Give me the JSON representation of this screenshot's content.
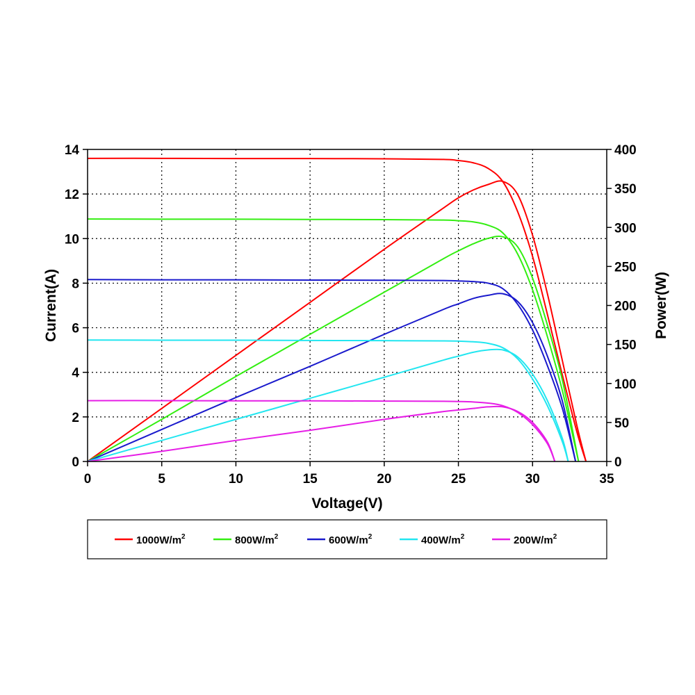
{
  "chart_data": {
    "type": "line",
    "xlabel": "Voltage(V)",
    "ylabel_left": "Current(A)",
    "ylabel_right": "Power(W)",
    "xlim": [
      0,
      35
    ],
    "ylim_left": [
      0,
      14
    ],
    "ylim_right": [
      0,
      400
    ],
    "x_ticks": [
      "0",
      "5",
      "10",
      "15",
      "20",
      "25",
      "30",
      "35"
    ],
    "y_left_ticks": [
      "0",
      "2",
      "4",
      "6",
      "8",
      "10",
      "12",
      "14"
    ],
    "y_right_ticks": [
      "0",
      "50",
      "100",
      "150",
      "200",
      "250",
      "300",
      "350",
      "400"
    ],
    "grid": true,
    "legend_position": "bottom",
    "series": [
      {
        "name": "1000W/m",
        "name_sup": "2",
        "color": "#ff0000",
        "current": {
          "x": [
            0,
            5,
            10,
            15,
            20,
            24,
            25,
            26,
            27,
            28,
            29,
            30,
            31,
            32,
            33,
            33.6
          ],
          "y": [
            13.6,
            13.6,
            13.59,
            13.59,
            13.58,
            13.55,
            13.5,
            13.4,
            13.15,
            12.55,
            11.2,
            9.2,
            6.6,
            3.9,
            1.3,
            0
          ]
        },
        "power": {
          "x": [
            0,
            5,
            10,
            15,
            20,
            24,
            25,
            26,
            27,
            28,
            29,
            30,
            31,
            32,
            33,
            33.6
          ],
          "y": [
            0,
            68,
            136,
            204,
            272,
            325,
            338,
            348,
            355,
            359,
            342,
            290,
            215,
            130,
            45,
            0
          ]
        }
      },
      {
        "name": "800W/m",
        "name_sup": "2",
        "color": "#33ee11",
        "current": {
          "x": [
            0,
            5,
            10,
            15,
            20,
            24,
            25,
            26,
            27,
            28,
            29,
            30,
            31,
            32,
            33.1
          ],
          "y": [
            10.88,
            10.87,
            10.87,
            10.86,
            10.85,
            10.83,
            10.8,
            10.75,
            10.6,
            10.25,
            9.3,
            7.7,
            5.6,
            3.2,
            0
          ]
        },
        "power": {
          "x": [
            0,
            5,
            10,
            15,
            20,
            24,
            25,
            26,
            27,
            28,
            29,
            30,
            31,
            32,
            33.1
          ],
          "y": [
            0,
            54,
            109,
            163,
            217,
            260,
            270,
            279,
            286,
            288,
            275,
            235,
            175,
            105,
            0
          ]
        }
      },
      {
        "name": "600W/m",
        "name_sup": "2",
        "color": "#1a1acc",
        "current": {
          "x": [
            0,
            5,
            10,
            15,
            20,
            24,
            25,
            26,
            27,
            28,
            29,
            30,
            31,
            32,
            32.9
          ],
          "y": [
            8.16,
            8.15,
            8.15,
            8.14,
            8.13,
            8.12,
            8.1,
            8.07,
            8.0,
            7.75,
            7.05,
            5.9,
            4.3,
            2.4,
            0
          ]
        },
        "power": {
          "x": [
            0,
            5,
            10,
            15,
            20,
            24,
            25,
            26,
            27,
            28,
            29,
            30,
            31,
            32,
            32.9
          ],
          "y": [
            0,
            41,
            82,
            122,
            163,
            195,
            202,
            209,
            213,
            215,
            205,
            178,
            135,
            78,
            0
          ]
        }
      },
      {
        "name": "400W/m",
        "name_sup": "2",
        "color": "#22e6f0",
        "current": {
          "x": [
            0,
            5,
            10,
            15,
            20,
            24,
            25,
            26,
            27,
            28,
            29,
            30,
            31,
            32,
            32.4
          ],
          "y": [
            5.45,
            5.44,
            5.44,
            5.43,
            5.42,
            5.41,
            5.4,
            5.37,
            5.3,
            5.1,
            4.6,
            3.7,
            2.5,
            0.9,
            0
          ]
        },
        "power": {
          "x": [
            0,
            5,
            10,
            15,
            20,
            24,
            25,
            26,
            27,
            28,
            29,
            30,
            31,
            32,
            32.4
          ],
          "y": [
            0,
            27,
            54,
            81,
            108,
            130,
            135,
            140,
            143,
            143,
            134,
            112,
            78,
            30,
            0
          ]
        }
      },
      {
        "name": "200W/m",
        "name_sup": "2",
        "color": "#e61ee6",
        "current": {
          "x": [
            0,
            5,
            10,
            15,
            20,
            24,
            25,
            26,
            27,
            28,
            29,
            30,
            31,
            31.5
          ],
          "y": [
            2.73,
            2.73,
            2.72,
            2.72,
            2.71,
            2.7,
            2.69,
            2.67,
            2.62,
            2.5,
            2.2,
            1.65,
            0.8,
            0
          ]
        },
        "power": {
          "x": [
            0,
            5,
            10,
            15,
            20,
            24,
            25,
            26,
            27,
            28,
            29,
            30,
            31,
            31.5
          ],
          "y": [
            0,
            13,
            27,
            40,
            54,
            64,
            66,
            68,
            70,
            70,
            64,
            50,
            25,
            0
          ]
        }
      }
    ]
  }
}
